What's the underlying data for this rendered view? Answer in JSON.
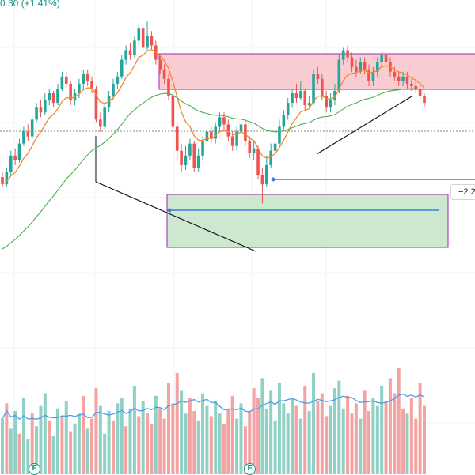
{
  "header": {
    "change_text": "0.30 (+1.41%)"
  },
  "price_axis": {
    "badge_text": "−2.2"
  },
  "events": [
    {
      "label": "F"
    },
    {
      "label": "F"
    }
  ],
  "colors": {
    "up": "#26a69a",
    "down": "#ef5350",
    "vol_up": "#8fd1c4",
    "vol_down": "#f4a3a3",
    "ema_short": "#f0882f",
    "ema_long": "#4caf50",
    "vol_ma": "#4a9de8",
    "resistance_zone": "#f8c6cc",
    "support_zone": "#c8e6c9",
    "zone_border": "#9c27b0",
    "level_line": "#3d7fe0",
    "trendline": "#131722"
  },
  "chart_data": {
    "type": "candlestick",
    "x_count": 100,
    "y_axis": {
      "min": 0,
      "max": 100
    },
    "candles": [
      [
        31,
        28,
        33,
        27
      ],
      [
        28,
        33,
        35,
        27
      ],
      [
        33,
        40,
        42,
        32
      ],
      [
        40,
        38,
        43,
        36
      ],
      [
        38,
        45,
        47,
        37
      ],
      [
        45,
        50,
        52,
        44
      ],
      [
        50,
        48,
        53,
        46
      ],
      [
        48,
        55,
        57,
        47
      ],
      [
        55,
        60,
        62,
        54
      ],
      [
        60,
        58,
        63,
        56
      ],
      [
        58,
        63,
        66,
        57
      ],
      [
        63,
        66,
        68,
        61
      ],
      [
        66,
        62,
        67,
        60
      ],
      [
        62,
        68,
        70,
        61
      ],
      [
        68,
        73,
        75,
        67
      ],
      [
        73,
        70,
        75,
        68
      ],
      [
        70,
        63,
        71,
        61
      ],
      [
        63,
        66,
        68,
        61
      ],
      [
        66,
        70,
        72,
        64
      ],
      [
        70,
        74,
        76,
        68
      ],
      [
        74,
        71,
        76,
        69
      ],
      [
        71,
        68,
        73,
        66
      ],
      [
        68,
        55,
        69,
        54
      ],
      [
        55,
        52,
        58,
        50
      ],
      [
        52,
        60,
        62,
        51
      ],
      [
        60,
        65,
        67,
        58
      ],
      [
        65,
        70,
        72,
        63
      ],
      [
        70,
        73,
        75,
        68
      ],
      [
        73,
        80,
        82,
        72
      ],
      [
        80,
        84,
        86,
        78
      ],
      [
        84,
        82,
        87,
        80
      ],
      [
        82,
        88,
        90,
        81
      ],
      [
        88,
        93,
        95,
        86
      ],
      [
        93,
        85,
        94,
        84
      ],
      [
        85,
        90,
        96,
        84
      ],
      [
        90,
        86,
        92,
        84
      ],
      [
        86,
        80,
        88,
        78
      ],
      [
        80,
        76,
        82,
        74
      ],
      [
        76,
        72,
        78,
        70
      ],
      [
        72,
        65,
        74,
        63
      ],
      [
        65,
        52,
        66,
        50
      ],
      [
        52,
        42,
        54,
        38
      ],
      [
        42,
        36,
        45,
        33
      ],
      [
        36,
        40,
        44,
        34
      ],
      [
        40,
        45,
        47,
        38
      ],
      [
        45,
        35,
        46,
        33
      ],
      [
        35,
        40,
        43,
        33
      ],
      [
        40,
        46,
        48,
        38
      ],
      [
        46,
        50,
        52,
        44
      ],
      [
        50,
        47,
        52,
        45
      ],
      [
        47,
        52,
        54,
        45
      ],
      [
        52,
        56,
        58,
        50
      ],
      [
        56,
        53,
        58,
        50
      ],
      [
        53,
        48,
        55,
        46
      ],
      [
        48,
        44,
        50,
        42
      ],
      [
        44,
        50,
        52,
        42
      ],
      [
        50,
        53,
        56,
        48
      ],
      [
        53,
        46,
        55,
        44
      ],
      [
        46,
        41,
        48,
        39
      ],
      [
        41,
        43,
        46,
        38
      ],
      [
        43,
        32,
        44,
        30
      ],
      [
        32,
        28,
        35,
        20
      ],
      [
        28,
        36,
        40,
        27
      ],
      [
        36,
        42,
        45,
        35
      ],
      [
        42,
        45,
        48,
        40
      ],
      [
        45,
        52,
        55,
        44
      ],
      [
        52,
        57,
        59,
        50
      ],
      [
        57,
        62,
        64,
        55
      ],
      [
        62,
        66,
        68,
        60
      ],
      [
        66,
        64,
        70,
        62
      ],
      [
        64,
        67,
        71,
        63
      ],
      [
        67,
        61,
        68,
        59
      ],
      [
        61,
        62,
        65,
        60
      ],
      [
        62,
        74,
        76,
        61
      ],
      [
        74,
        72,
        77,
        70
      ],
      [
        72,
        65,
        74,
        63
      ],
      [
        65,
        60,
        67,
        58
      ],
      [
        60,
        63,
        66,
        58
      ],
      [
        63,
        67,
        70,
        61
      ],
      [
        67,
        80,
        82,
        66
      ],
      [
        80,
        84,
        85,
        78
      ],
      [
        84,
        81,
        86,
        79
      ],
      [
        81,
        77,
        83,
        75
      ],
      [
        77,
        75,
        80,
        73
      ],
      [
        75,
        79,
        81,
        74
      ],
      [
        79,
        76,
        81,
        74
      ],
      [
        76,
        71,
        78,
        69
      ],
      [
        71,
        75,
        77,
        69
      ],
      [
        75,
        79,
        81,
        73
      ],
      [
        79,
        82,
        83,
        77
      ],
      [
        82,
        79,
        84,
        77
      ],
      [
        79,
        75,
        81,
        73
      ],
      [
        75,
        73,
        77,
        71
      ],
      [
        73,
        71,
        75,
        69
      ],
      [
        71,
        73,
        75,
        69
      ],
      [
        73,
        70,
        75,
        68
      ],
      [
        70,
        69,
        72,
        67
      ],
      [
        69,
        68,
        71,
        66
      ],
      [
        68,
        65,
        70,
        63
      ],
      [
        65,
        62,
        66,
        60
      ]
    ],
    "volume": [
      [
        22,
        1
      ],
      [
        28,
        0
      ],
      [
        18,
        1
      ],
      [
        25,
        1
      ],
      [
        16,
        0
      ],
      [
        30,
        1
      ],
      [
        14,
        1
      ],
      [
        24,
        0
      ],
      [
        19,
        1
      ],
      [
        27,
        1
      ],
      [
        32,
        1
      ],
      [
        21,
        0
      ],
      [
        15,
        1
      ],
      [
        26,
        1
      ],
      [
        23,
        0
      ],
      [
        29,
        1
      ],
      [
        17,
        0
      ],
      [
        20,
        1
      ],
      [
        24,
        1
      ],
      [
        31,
        0
      ],
      [
        18,
        1
      ],
      [
        22,
        0
      ],
      [
        34,
        0
      ],
      [
        27,
        1
      ],
      [
        16,
        1
      ],
      [
        25,
        1
      ],
      [
        21,
        0
      ],
      [
        28,
        1
      ],
      [
        30,
        1
      ],
      [
        19,
        0
      ],
      [
        26,
        1
      ],
      [
        35,
        1
      ],
      [
        23,
        0
      ],
      [
        29,
        1
      ],
      [
        24,
        0
      ],
      [
        20,
        0
      ],
      [
        31,
        1
      ],
      [
        26,
        0
      ],
      [
        22,
        0
      ],
      [
        36,
        0
      ],
      [
        28,
        0
      ],
      [
        40,
        0
      ],
      [
        33,
        1
      ],
      [
        24,
        1
      ],
      [
        30,
        0
      ],
      [
        25,
        0
      ],
      [
        21,
        1
      ],
      [
        32,
        1
      ],
      [
        27,
        1
      ],
      [
        23,
        0
      ],
      [
        29,
        1
      ],
      [
        24,
        1
      ],
      [
        20,
        0
      ],
      [
        26,
        0
      ],
      [
        31,
        0
      ],
      [
        22,
        1
      ],
      [
        28,
        1
      ],
      [
        19,
        0
      ],
      [
        25,
        0
      ],
      [
        34,
        0
      ],
      [
        30,
        0
      ],
      [
        38,
        1
      ],
      [
        26,
        1
      ],
      [
        33,
        1
      ],
      [
        21,
        1
      ],
      [
        36,
        1
      ],
      [
        28,
        1
      ],
      [
        24,
        1
      ],
      [
        30,
        1
      ],
      [
        27,
        0
      ],
      [
        22,
        1
      ],
      [
        35,
        0
      ],
      [
        25,
        1
      ],
      [
        40,
        1
      ],
      [
        29,
        0
      ],
      [
        32,
        0
      ],
      [
        23,
        0
      ],
      [
        27,
        1
      ],
      [
        34,
        1
      ],
      [
        37,
        1
      ],
      [
        26,
        1
      ],
      [
        31,
        0
      ],
      [
        24,
        0
      ],
      [
        28,
        0
      ],
      [
        22,
        1
      ],
      [
        33,
        0
      ],
      [
        25,
        0
      ],
      [
        30,
        1
      ],
      [
        27,
        1
      ],
      [
        35,
        1
      ],
      [
        29,
        0
      ],
      [
        38,
        0
      ],
      [
        32,
        0
      ],
      [
        42,
        0
      ],
      [
        26,
        0
      ],
      [
        24,
        1
      ],
      [
        30,
        0
      ],
      [
        22,
        0
      ],
      [
        36,
        0
      ],
      [
        27,
        0
      ]
    ]
  }
}
